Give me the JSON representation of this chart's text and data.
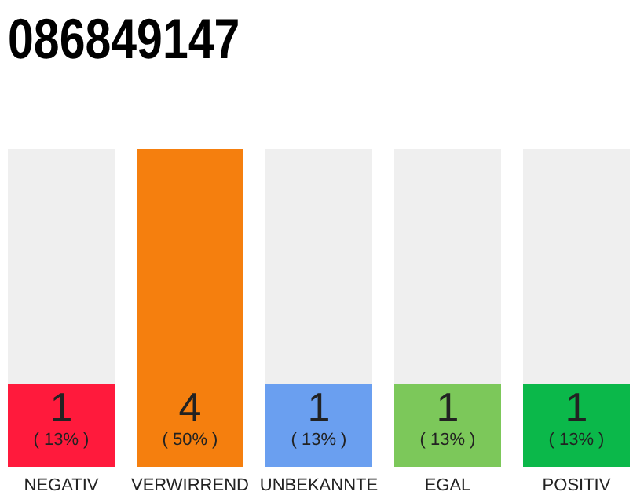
{
  "chart_data": {
    "type": "bar",
    "title": "086849147",
    "categories": [
      "NEGATIV",
      "VERWIRREND",
      "UNBEKANNTE",
      "EGAL",
      "POSITIV"
    ],
    "values": [
      13,
      50,
      13,
      13,
      13
    ],
    "colors": [
      "#ff1a3c",
      "#f57f0e",
      "#6a9ff0",
      "#7cc85a",
      "#0bb84a"
    ],
    "tick_labels": "x",
    "value_labels": [
      "( 13% )",
      "( 50% )",
      "( 13% )",
      "( 13% )",
      "( 13% )"
    ],
    "annotations": [
      "1",
      "4",
      "1",
      "1",
      "1"
    ]
  }
}
